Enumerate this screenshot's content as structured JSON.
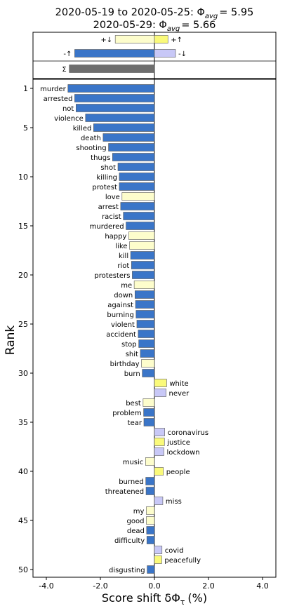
{
  "chart_data": {
    "type": "bar",
    "orientation": "horizontal",
    "title_line1": "2020-05-19 to 2020-05-25: Φ",
    "title_line1_sub": "avg",
    "title_line1_value": "= 5.95",
    "title_line2": "2020-05-29: Φ",
    "title_line2_sub": "avg",
    "title_line2_value": "= 5.66",
    "xlabel": "Score shift δΦ",
    "xlabel_sub": "τ",
    "xlabel_unit": "(%)",
    "ylabel": "Rank",
    "xlim": [
      -4.5,
      4.5
    ],
    "xticks": [
      -4.0,
      -2.0,
      0.0,
      2.0,
      4.0
    ],
    "xtick_labels": [
      "-4.0",
      "-2.0",
      "0.0",
      "2.0",
      "4.0"
    ],
    "yticks": [
      1,
      5,
      10,
      15,
      20,
      25,
      30,
      35,
      40,
      45,
      50
    ],
    "ytick_labels": [
      "1",
      "5",
      "10",
      "15",
      "20",
      "25",
      "30",
      "35",
      "40",
      "45",
      "50"
    ],
    "colors": {
      "negative_increase": "#3a75c8",
      "negative_decrease": "#fdfdcc",
      "positive_increase": "#fafa7a",
      "positive_decrease": "#c8c8f7",
      "total": "#6e6e6e"
    },
    "summary": [
      {
        "label": "+↓",
        "value": -1.45,
        "kind": "negative_decrease"
      },
      {
        "label": "+↑",
        "value": 0.5,
        "kind": "positive_increase"
      },
      {
        "label": "-↑",
        "value": -2.95,
        "kind": "negative_increase"
      },
      {
        "label": "-↓",
        "value": 0.78,
        "kind": "positive_decrease"
      },
      {
        "label": "Σ",
        "value": -3.15,
        "kind": "total"
      }
    ],
    "words": [
      {
        "rank": 1,
        "word": "murder",
        "value": -3.2,
        "kind": "negative_increase"
      },
      {
        "rank": 2,
        "word": "arrested",
        "value": -2.95,
        "kind": "negative_increase"
      },
      {
        "rank": 3,
        "word": "not",
        "value": -2.9,
        "kind": "negative_increase"
      },
      {
        "rank": 4,
        "word": "violence",
        "value": -2.55,
        "kind": "negative_increase"
      },
      {
        "rank": 5,
        "word": "killed",
        "value": -2.25,
        "kind": "negative_increase"
      },
      {
        "rank": 6,
        "word": "death",
        "value": -1.9,
        "kind": "negative_increase"
      },
      {
        "rank": 7,
        "word": "shooting",
        "value": -1.7,
        "kind": "negative_increase"
      },
      {
        "rank": 8,
        "word": "thugs",
        "value": -1.55,
        "kind": "negative_increase"
      },
      {
        "rank": 9,
        "word": "shot",
        "value": -1.35,
        "kind": "negative_increase"
      },
      {
        "rank": 10,
        "word": "killing",
        "value": -1.3,
        "kind": "negative_increase"
      },
      {
        "rank": 11,
        "word": "protest",
        "value": -1.3,
        "kind": "negative_increase"
      },
      {
        "rank": 12,
        "word": "love",
        "value": -1.2,
        "kind": "negative_decrease"
      },
      {
        "rank": 13,
        "word": "arrest",
        "value": -1.25,
        "kind": "negative_increase"
      },
      {
        "rank": 14,
        "word": "racist",
        "value": -1.15,
        "kind": "negative_increase"
      },
      {
        "rank": 15,
        "word": "murdered",
        "value": -1.05,
        "kind": "negative_increase"
      },
      {
        "rank": 16,
        "word": "happy",
        "value": -0.95,
        "kind": "negative_decrease"
      },
      {
        "rank": 17,
        "word": "like",
        "value": -0.92,
        "kind": "negative_decrease"
      },
      {
        "rank": 18,
        "word": "kill",
        "value": -0.88,
        "kind": "negative_increase"
      },
      {
        "rank": 19,
        "word": "riot",
        "value": -0.85,
        "kind": "negative_increase"
      },
      {
        "rank": 20,
        "word": "protesters",
        "value": -0.82,
        "kind": "negative_increase"
      },
      {
        "rank": 21,
        "word": "me",
        "value": -0.75,
        "kind": "negative_decrease"
      },
      {
        "rank": 22,
        "word": "down",
        "value": -0.72,
        "kind": "negative_increase"
      },
      {
        "rank": 23,
        "word": "against",
        "value": -0.7,
        "kind": "negative_increase"
      },
      {
        "rank": 24,
        "word": "burning",
        "value": -0.68,
        "kind": "negative_increase"
      },
      {
        "rank": 25,
        "word": "violent",
        "value": -0.65,
        "kind": "negative_increase"
      },
      {
        "rank": 26,
        "word": "accident",
        "value": -0.6,
        "kind": "negative_increase"
      },
      {
        "rank": 27,
        "word": "stop",
        "value": -0.58,
        "kind": "negative_increase"
      },
      {
        "rank": 28,
        "word": "shit",
        "value": -0.52,
        "kind": "negative_increase"
      },
      {
        "rank": 29,
        "word": "birthday",
        "value": -0.48,
        "kind": "negative_decrease"
      },
      {
        "rank": 30,
        "word": "burn",
        "value": -0.45,
        "kind": "negative_increase"
      },
      {
        "rank": 31,
        "word": "white",
        "value": 0.45,
        "kind": "positive_increase"
      },
      {
        "rank": 32,
        "word": "never",
        "value": 0.43,
        "kind": "positive_decrease"
      },
      {
        "rank": 33,
        "word": "best",
        "value": -0.42,
        "kind": "negative_decrease"
      },
      {
        "rank": 34,
        "word": "problem",
        "value": -0.4,
        "kind": "negative_increase"
      },
      {
        "rank": 35,
        "word": "tear",
        "value": -0.39,
        "kind": "negative_increase"
      },
      {
        "rank": 36,
        "word": "coronavirus",
        "value": 0.38,
        "kind": "positive_decrease"
      },
      {
        "rank": 37,
        "word": "justice",
        "value": 0.37,
        "kind": "positive_increase"
      },
      {
        "rank": 38,
        "word": "lockdown",
        "value": 0.35,
        "kind": "positive_decrease"
      },
      {
        "rank": 39,
        "word": "music",
        "value": -0.33,
        "kind": "negative_decrease"
      },
      {
        "rank": 40,
        "word": "people",
        "value": 0.33,
        "kind": "positive_increase"
      },
      {
        "rank": 41,
        "word": "burned",
        "value": -0.32,
        "kind": "negative_increase"
      },
      {
        "rank": 42,
        "word": "threatened",
        "value": -0.31,
        "kind": "negative_increase"
      },
      {
        "rank": 43,
        "word": "miss",
        "value": 0.31,
        "kind": "positive_decrease"
      },
      {
        "rank": 44,
        "word": "my",
        "value": -0.3,
        "kind": "negative_decrease"
      },
      {
        "rank": 45,
        "word": "good",
        "value": -0.3,
        "kind": "negative_decrease"
      },
      {
        "rank": 46,
        "word": "dead",
        "value": -0.29,
        "kind": "negative_increase"
      },
      {
        "rank": 47,
        "word": "difficulty",
        "value": -0.28,
        "kind": "negative_increase"
      },
      {
        "rank": 48,
        "word": "covid",
        "value": 0.28,
        "kind": "positive_decrease"
      },
      {
        "rank": 49,
        "word": "peacefully",
        "value": 0.27,
        "kind": "positive_increase"
      },
      {
        "rank": 50,
        "word": "disgusting",
        "value": -0.27,
        "kind": "negative_increase"
      }
    ]
  }
}
